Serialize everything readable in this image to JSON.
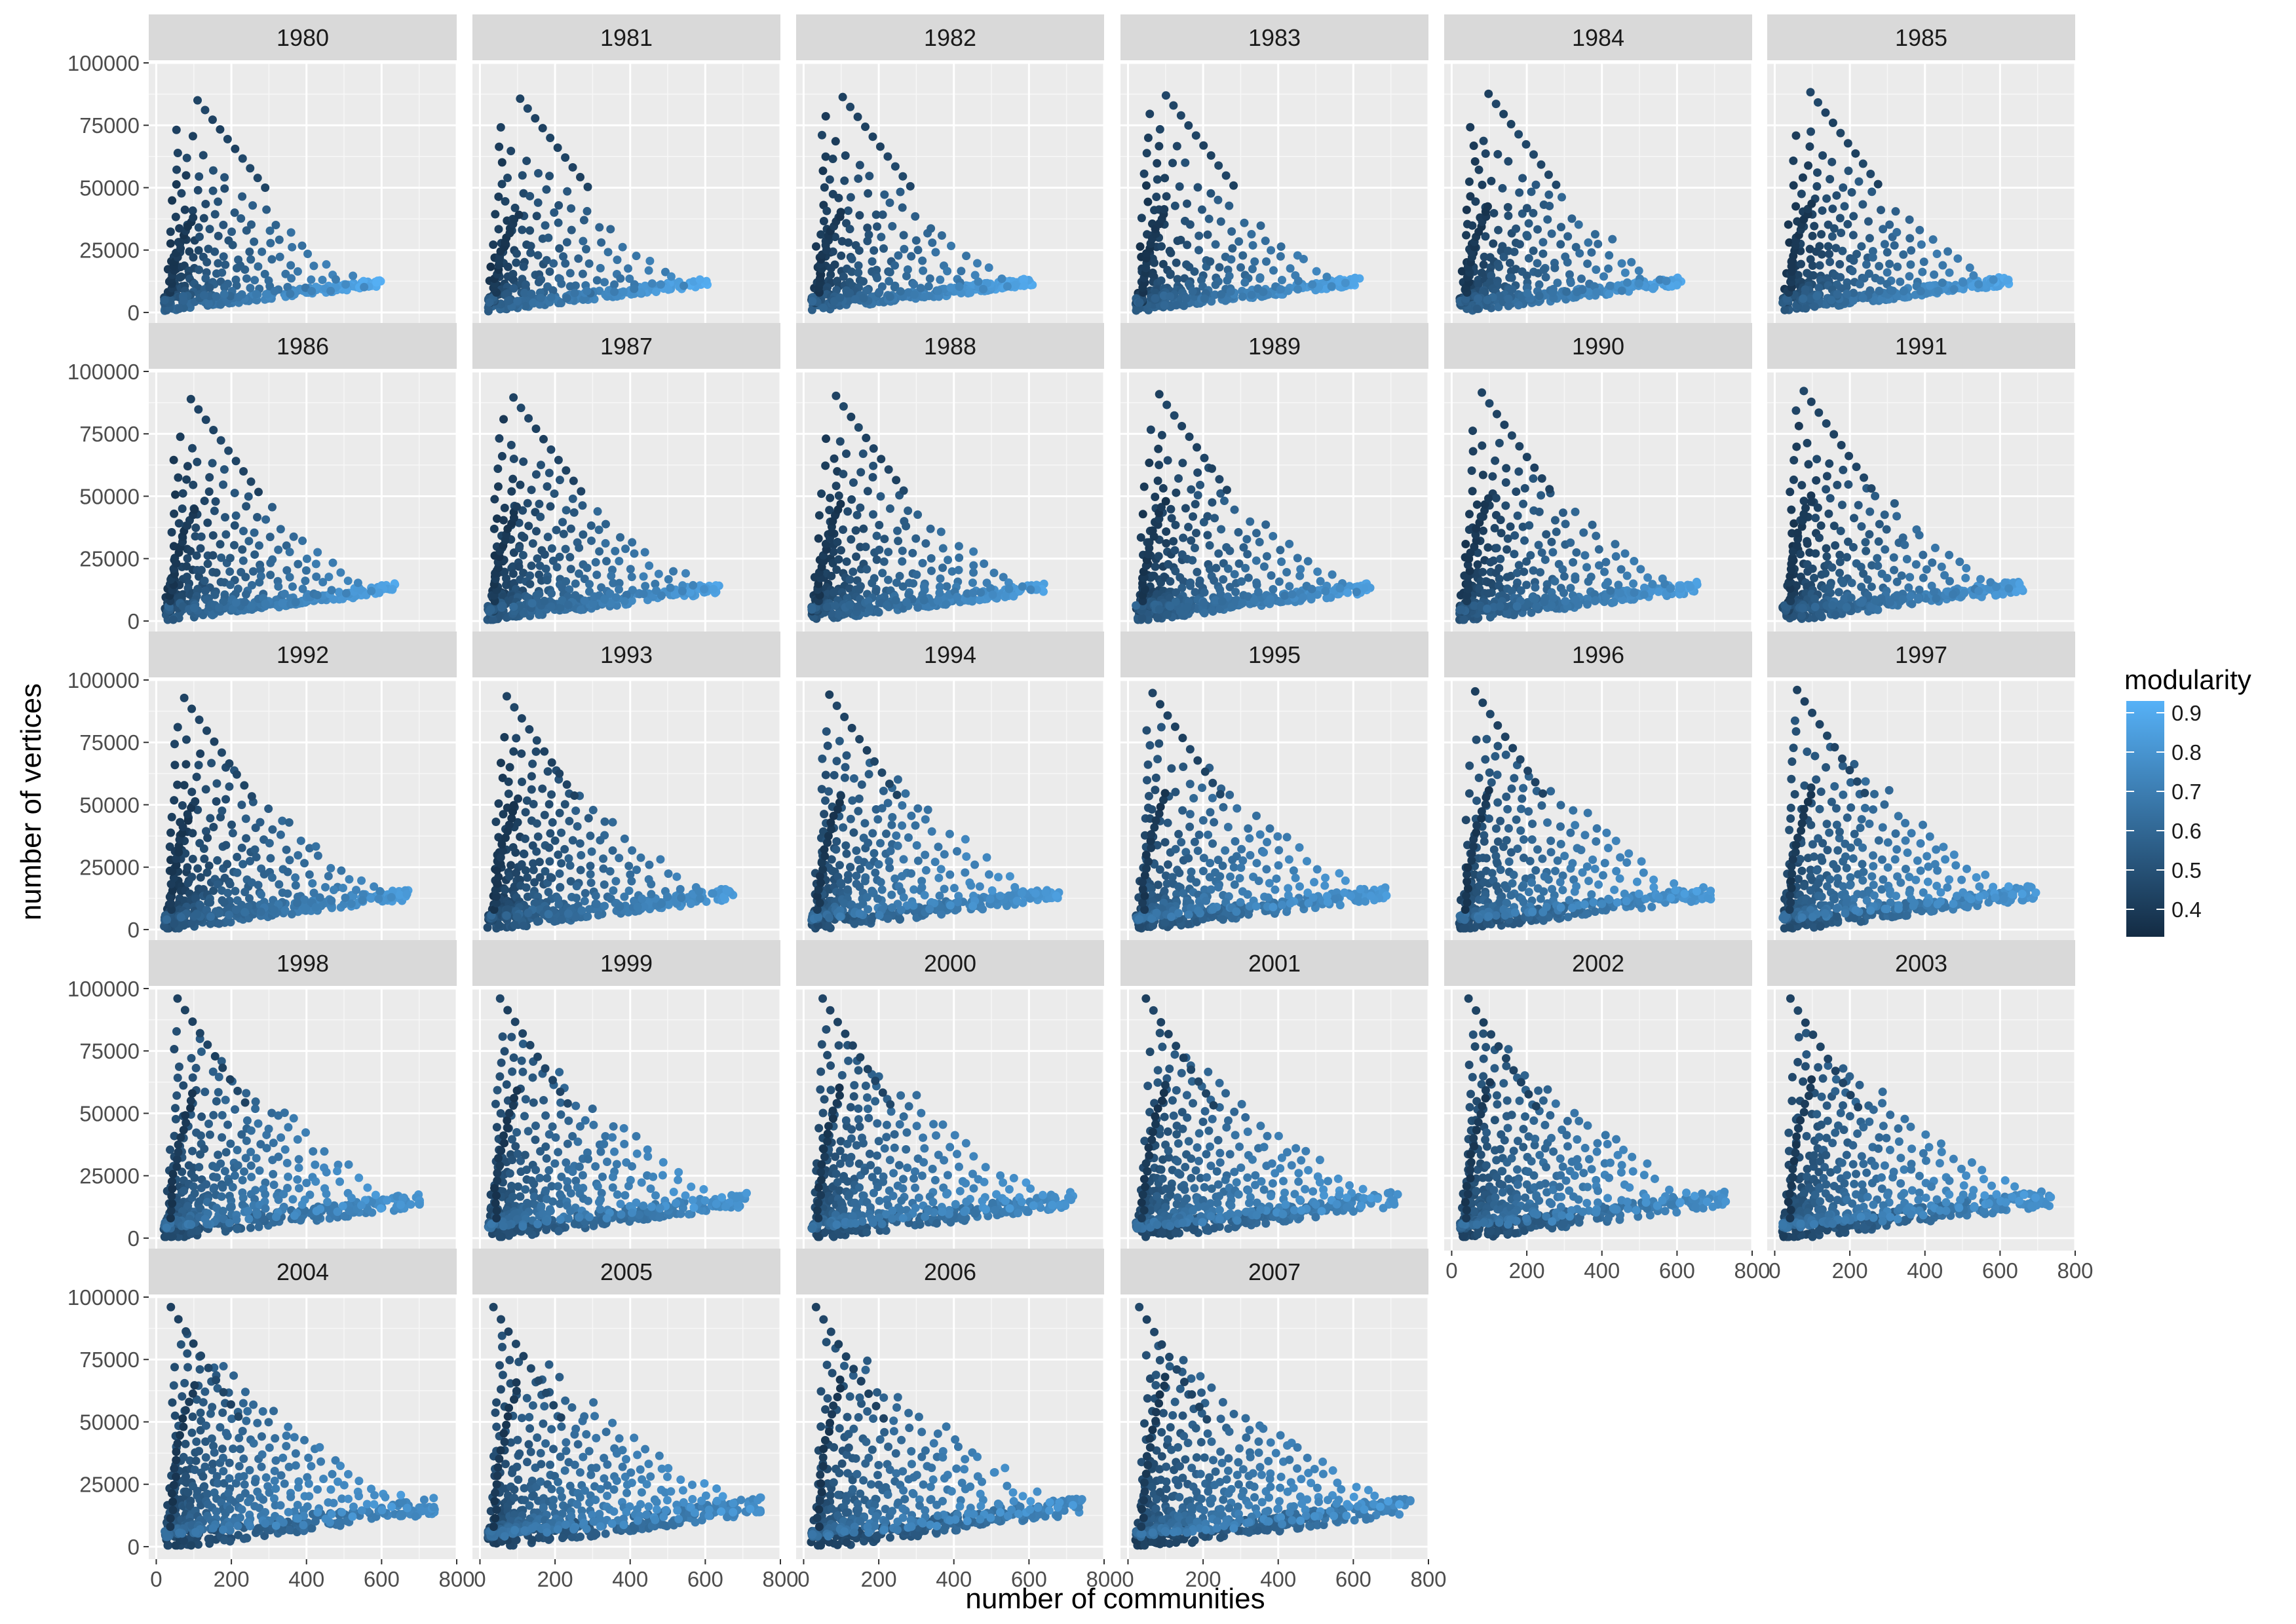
{
  "chart_data": {
    "type": "scatter",
    "layout": "faceted small multiples (5 rows x 6 columns)",
    "xlabel": "number of communities",
    "ylabel": "number of vertices",
    "xlim": [
      -20,
      800
    ],
    "ylim": [
      -5000,
      100000
    ],
    "x_ticks": [
      "0",
      "200",
      "400",
      "600",
      "800"
    ],
    "y_ticks": [
      "0",
      "25000",
      "50000",
      "75000",
      "100000"
    ],
    "x_tick_values": [
      0,
      200,
      400,
      600,
      800
    ],
    "y_tick_values": [
      0,
      25000,
      50000,
      75000,
      100000
    ],
    "grid": true,
    "legend": {
      "title": "modularity",
      "placement": "right",
      "type": "continuous color scale",
      "min": 0.33,
      "max": 0.93,
      "ticks": [
        "0.9",
        "0.8",
        "0.7",
        "0.6",
        "0.5",
        "0.4"
      ],
      "tick_values": [
        0.9,
        0.8,
        0.7,
        0.6,
        0.5,
        0.4
      ],
      "low_color": "#132B43",
      "high_color": "#56B1F7"
    },
    "facets": [
      "1980",
      "1981",
      "1982",
      "1983",
      "1984",
      "1985",
      "1986",
      "1987",
      "1988",
      "1989",
      "1990",
      "1991",
      "1992",
      "1993",
      "1994",
      "1995",
      "1996",
      "1997",
      "1998",
      "1999",
      "2000",
      "2001",
      "2002",
      "2003",
      "2004",
      "2005",
      "2006",
      "2007"
    ],
    "facet_shape": {
      "note": "approximate shape of each year's point cloud, read from axes",
      "max_vertices_peak": {
        "1980": 85000,
        "1985": 86000,
        "1990": 90000,
        "1995": 95000,
        "2000": 96000,
        "2007": 96000
      },
      "max_communities": {
        "1980": 600,
        "1985": 690,
        "1990": 680,
        "1995": 680,
        "2000": 670,
        "2003": 730,
        "2007": 760
      },
      "baseline_end_vertices": {
        "1980": 13000,
        "1985": 12000,
        "1990": 12000,
        "1995": 14000,
        "2000": 15000,
        "2007": 17000
      }
    }
  }
}
